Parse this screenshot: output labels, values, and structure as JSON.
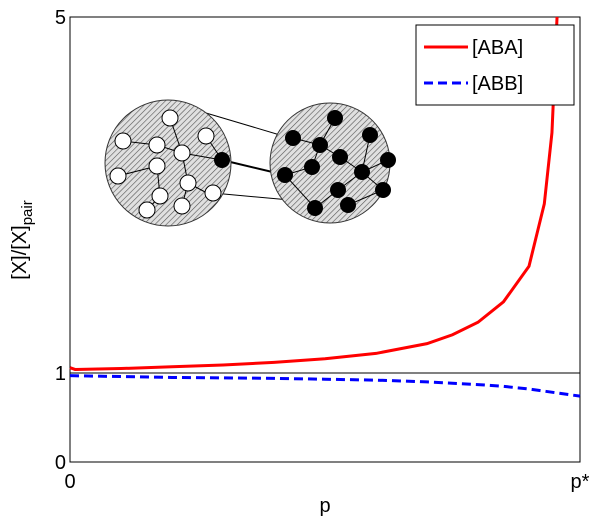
{
  "chart_data": {
    "type": "line",
    "xlabel": "p",
    "ylabel": "[X]/[X]",
    "ylabel_subscript": "pair",
    "xlim": [
      0,
      1
    ],
    "xticks": [
      0,
      {
        "value": 1,
        "label": "p*"
      }
    ],
    "ylim": [
      0,
      5
    ],
    "yticks": [
      0,
      1,
      5
    ],
    "reference_line": 1,
    "legend": "upper right",
    "series": [
      {
        "name": "[ABA]",
        "color": "#ff0000",
        "dash": "solid",
        "x": [
          0,
          0.01,
          0.1,
          0.2,
          0.3,
          0.4,
          0.5,
          0.6,
          0.7,
          0.75,
          0.8,
          0.85,
          0.9,
          0.93,
          0.945,
          0.955
        ],
        "values": [
          1.06,
          1.04,
          1.05,
          1.07,
          1.09,
          1.12,
          1.16,
          1.22,
          1.33,
          1.43,
          1.57,
          1.8,
          2.2,
          2.9,
          3.7,
          5
        ]
      },
      {
        "name": "[ABB]",
        "color": "#0000ff",
        "dash": "dashed",
        "x": [
          0,
          0.2,
          0.4,
          0.5,
          0.6,
          0.7,
          0.8,
          0.85,
          0.9,
          0.95,
          1
        ],
        "values": [
          0.97,
          0.95,
          0.94,
          0.93,
          0.92,
          0.9,
          0.87,
          0.85,
          0.82,
          0.78,
          0.74
        ]
      }
    ]
  }
}
